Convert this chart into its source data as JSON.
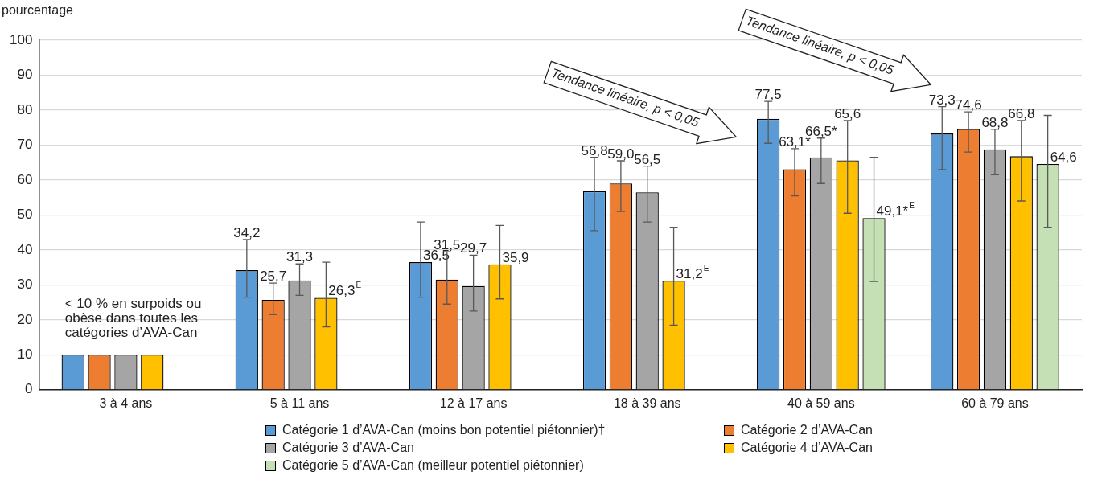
{
  "chart_data": {
    "type": "bar",
    "ylabel": "pourcentage",
    "categories": [
      "3 à 4 ans",
      "5 à 11 ans",
      "12 à 17 ans",
      "18 à 39 ans",
      "40 à 59 ans",
      "60 à 79 ans"
    ],
    "series": [
      {
        "name": "Catégorie 1 d’AVA-Can (moins bon potentiel piétonnier)†",
        "color": "#5b9bd5",
        "values": [
          10,
          34.2,
          36.5,
          56.8,
          77.5,
          73.3
        ],
        "errors": [
          null,
          [
            26.5,
            43
          ],
          [
            26.5,
            48
          ],
          [
            45.5,
            66.5
          ],
          [
            70.5,
            82.5
          ],
          [
            63,
            81
          ]
        ],
        "value_labels": [
          null,
          "34,2",
          "36,5",
          "56,8",
          "77,5",
          "73,3"
        ]
      },
      {
        "name": "Catégorie 2 d’AVA-Can",
        "color": "#ed7d31",
        "values": [
          10,
          25.7,
          31.5,
          59.0,
          63.1,
          74.6
        ],
        "errors": [
          null,
          [
            21.5,
            30.5
          ],
          [
            24.5,
            39.5
          ],
          [
            51,
            65.5
          ],
          [
            55.5,
            69
          ],
          [
            68,
            79.5
          ]
        ],
        "value_labels": [
          null,
          "25,7",
          "31,5",
          "59,0",
          "63,1*",
          "74,6"
        ]
      },
      {
        "name": "Catégorie 3 d’AVA-Can",
        "color": "#a5a5a5",
        "values": [
          10,
          31.3,
          29.7,
          56.5,
          66.5,
          68.8
        ],
        "errors": [
          null,
          [
            27,
            36
          ],
          [
            22.5,
            38.5
          ],
          [
            48,
            64
          ],
          [
            59,
            72
          ],
          [
            61.5,
            74.5
          ]
        ],
        "value_labels": [
          null,
          "31,3",
          "29,7",
          "56,5",
          "66,5*",
          "68,8"
        ]
      },
      {
        "name": "Catégorie 4 d’AVA-Can",
        "color": "#ffc000",
        "values": [
          10,
          26.3,
          35.9,
          31.2,
          65.6,
          66.8
        ],
        "errors": [
          null,
          [
            18,
            36.5
          ],
          [
            26,
            47
          ],
          [
            18.5,
            46.5
          ],
          [
            50.5,
            77
          ],
          [
            54,
            77
          ]
        ],
        "value_labels": [
          null,
          "26,3$^{E}$",
          "35,9",
          "31,2$^{E}$",
          "65,6",
          "66,8"
        ]
      },
      {
        "name": "Catégorie 5 d’AVA-Can (meilleur potentiel piétonnier)",
        "color": "#c5e0b4",
        "values": [
          null,
          null,
          null,
          null,
          49.1,
          64.6
        ],
        "errors": [
          null,
          null,
          null,
          null,
          [
            31,
            66.5
          ],
          [
            46.5,
            78.5
          ]
        ],
        "value_labels": [
          null,
          null,
          null,
          null,
          "49,1*$^{E}$",
          "64,6"
        ]
      }
    ],
    "ylim": [
      0,
      100
    ],
    "yticks": [
      0,
      10,
      20,
      30,
      40,
      50,
      60,
      70,
      80,
      90,
      100
    ],
    "grid": "y",
    "legend": "bottom",
    "annotations": [
      "< 10 % en surpoids ou obèse dans toutes les catégories d’AVA-Can",
      "Tendance linéaire, p < 0,05",
      "Tendance linéaire, p < 0,05"
    ]
  }
}
